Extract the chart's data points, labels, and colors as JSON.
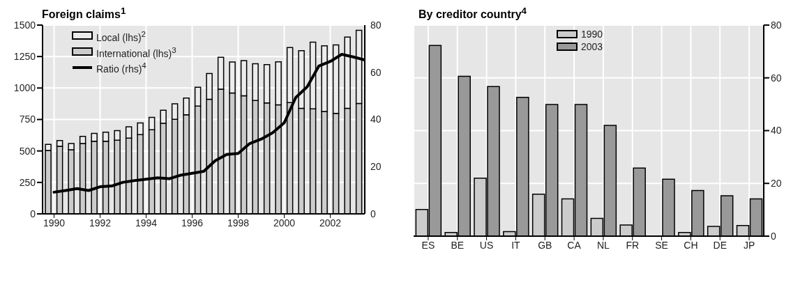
{
  "chart_data": [
    {
      "type": "bar",
      "title": "Foreign claims$^{1}$",
      "stacked": true,
      "legend": "top left",
      "grid": true,
      "marker": "none",
      "x": [
        1989.75,
        1990.25,
        1990.75,
        1991.25,
        1991.75,
        1992.25,
        1992.75,
        1993.25,
        1993.75,
        1994.25,
        1994.75,
        1995.25,
        1995.75,
        1996.25,
        1996.75,
        1997.25,
        1997.75,
        1998.25,
        1998.75,
        1999.25,
        1999.75,
        2000.25,
        2000.75,
        2001.25,
        2001.75,
        2002.25,
        2002.75,
        2003.25
      ],
      "xlim": [
        1989.5,
        2003.5
      ],
      "xticks": [
        1990,
        1992,
        1994,
        1996,
        1998,
        2000,
        2002
      ],
      "ylim": [
        0,
        1500
      ],
      "yticks": [
        0,
        250,
        500,
        750,
        1000,
        1250,
        1500
      ],
      "y2lim": [
        0,
        80
      ],
      "y2ticks": [
        0,
        20,
        40,
        60,
        80
      ],
      "series": [
        {
          "name": "International (lhs)$^{3}$",
          "color": "#cccccc",
          "values": [
            504,
            537,
            509,
            559,
            577,
            577,
            585,
            602,
            630,
            669,
            719,
            751,
            788,
            857,
            910,
            991,
            960,
            938,
            901,
            881,
            867,
            884,
            838,
            834,
            814,
            798,
            838,
            878
          ]
        },
        {
          "name": "Local (lhs)$^{2}$",
          "color": "#ececec",
          "values": [
            48,
            46,
            50,
            57,
            63,
            72,
            77,
            90,
            93,
            97,
            105,
            123,
            132,
            149,
            205,
            253,
            246,
            280,
            292,
            305,
            341,
            437,
            459,
            530,
            521,
            544,
            566,
            581
          ]
        },
        {
          "name": "Ratio (rhs)$^{4}$",
          "type": "line",
          "axis": "y2",
          "color": "#000000",
          "x": [
            1990,
            1990.5,
            1991,
            1991.5,
            1992,
            1992.5,
            1993,
            1993.5,
            1994,
            1994.5,
            1995,
            1995.5,
            1996,
            1996.5,
            1997,
            1997.5,
            1998,
            1998.5,
            1999,
            1999.5,
            2000,
            2000.5,
            2001,
            2001.5,
            2002,
            2002.5,
            2003,
            2003.5
          ],
          "values": [
            9.2,
            9.9,
            10.7,
            9.9,
            11.5,
            11.8,
            13.4,
            14.1,
            14.7,
            15.3,
            14.9,
            16.4,
            17.2,
            18.0,
            22.5,
            25.2,
            25.6,
            29.8,
            31.7,
            34.4,
            38.6,
            49.3,
            53.9,
            62.6,
            64.6,
            67.6,
            66.5,
            65.2
          ]
        }
      ]
    },
    {
      "type": "bar",
      "title": "By creditor country$^{4}$",
      "legend": "top",
      "grid": true,
      "categories": [
        "ES",
        "BE",
        "US",
        "IT",
        "GB",
        "CA",
        "NL",
        "FR",
        "SE",
        "CH",
        "DE",
        "JP"
      ],
      "ylim": [
        0,
        80
      ],
      "yticks": [
        0,
        20,
        40,
        60,
        80
      ],
      "series": [
        {
          "name": "1990",
          "color": "#cccccc",
          "values": [
            10.1,
            1.4,
            22.0,
            1.7,
            15.9,
            14.1,
            6.7,
            4.2,
            null,
            1.4,
            3.7,
            4.0
          ]
        },
        {
          "name": "2003",
          "color": "#999999",
          "values": [
            72.3,
            60.6,
            56.7,
            52.6,
            49.9,
            49.9,
            42.0,
            25.8,
            21.6,
            17.3,
            15.3,
            14.1
          ]
        }
      ]
    }
  ]
}
